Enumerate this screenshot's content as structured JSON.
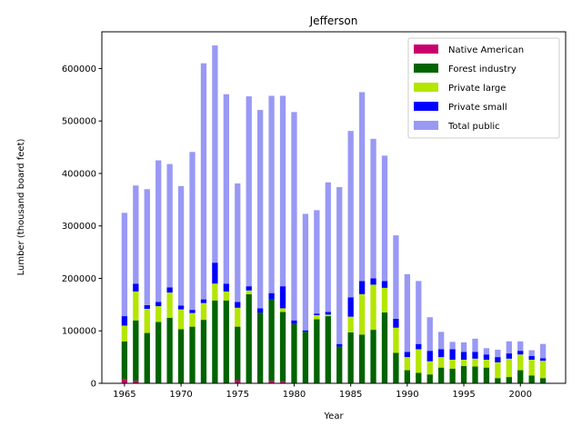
{
  "chart_data": {
    "type": "bar",
    "stacked": true,
    "title": "Jefferson",
    "xlabel": "Year",
    "ylabel": "Lumber (thousand board feet)",
    "xlim": [
      1963,
      2004
    ],
    "ylim": [
      0,
      670000
    ],
    "x_ticks": [
      1965,
      1970,
      1975,
      1980,
      1985,
      1990,
      1995,
      2000
    ],
    "y_ticks": [
      0,
      100000,
      200000,
      300000,
      400000,
      500000,
      600000
    ],
    "legend_position": "upper right",
    "x": [
      1965,
      1966,
      1967,
      1968,
      1969,
      1970,
      1971,
      1972,
      1973,
      1974,
      1975,
      1976,
      1977,
      1978,
      1979,
      1980,
      1981,
      1982,
      1983,
      1984,
      1985,
      1986,
      1987,
      1988,
      1989,
      1990,
      1991,
      1992,
      1993,
      1994,
      1995,
      1996,
      1997,
      1998,
      1999,
      2000,
      2001,
      2002
    ],
    "series": [
      {
        "name": "Native American",
        "color": "#c8006e",
        "values": [
          8000,
          5000,
          0,
          0,
          0,
          0,
          0,
          0,
          0,
          0,
          6000,
          0,
          0,
          5000,
          3000,
          0,
          0,
          0,
          0,
          0,
          0,
          0,
          0,
          0,
          0,
          0,
          0,
          0,
          0,
          0,
          0,
          0,
          0,
          0,
          0,
          0,
          0,
          0
        ]
      },
      {
        "name": "Forest industry",
        "color": "#006400",
        "values": [
          72000,
          115000,
          96000,
          117000,
          125000,
          103000,
          108000,
          121000,
          158000,
          158000,
          102000,
          170000,
          135000,
          155000,
          133000,
          113000,
          98000,
          122000,
          128000,
          70000,
          97000,
          93000,
          102000,
          135000,
          58000,
          25000,
          20000,
          17000,
          30000,
          28000,
          33000,
          32000,
          30000,
          10000,
          12000,
          25000,
          15000,
          10000
        ]
      },
      {
        "name": "Private large",
        "color": "#b4e600",
        "values": [
          30000,
          55000,
          46000,
          30000,
          48000,
          38000,
          26000,
          32000,
          32000,
          17000,
          36000,
          7000,
          0,
          0,
          7000,
          0,
          0,
          8000,
          3000,
          0,
          30000,
          77000,
          86000,
          47000,
          48000,
          25000,
          45000,
          25000,
          20000,
          17000,
          12000,
          15000,
          15000,
          30000,
          35000,
          30000,
          30000,
          33000
        ]
      },
      {
        "name": "Private small",
        "color": "#0000ff",
        "values": [
          18000,
          15000,
          7000,
          8000,
          10000,
          7000,
          6000,
          7000,
          40000,
          15000,
          11000,
          8000,
          8000,
          12000,
          42000,
          7000,
          3000,
          3000,
          5000,
          5000,
          37000,
          25000,
          12000,
          13000,
          17000,
          10000,
          10000,
          20000,
          15000,
          20000,
          15000,
          13000,
          10000,
          10000,
          10000,
          7000,
          7000,
          5000
        ]
      },
      {
        "name": "Total public",
        "color": "#9999f5",
        "values": [
          197000,
          187000,
          221000,
          270000,
          235000,
          228000,
          301000,
          450000,
          414000,
          361000,
          226000,
          362000,
          378000,
          376000,
          363000,
          397000,
          222000,
          197000,
          247000,
          299000,
          317000,
          360000,
          266000,
          239000,
          159000,
          148000,
          120000,
          64000,
          33000,
          14000,
          18000,
          25000,
          12000,
          14000,
          23000,
          18000,
          11000,
          27000
        ]
      }
    ]
  }
}
